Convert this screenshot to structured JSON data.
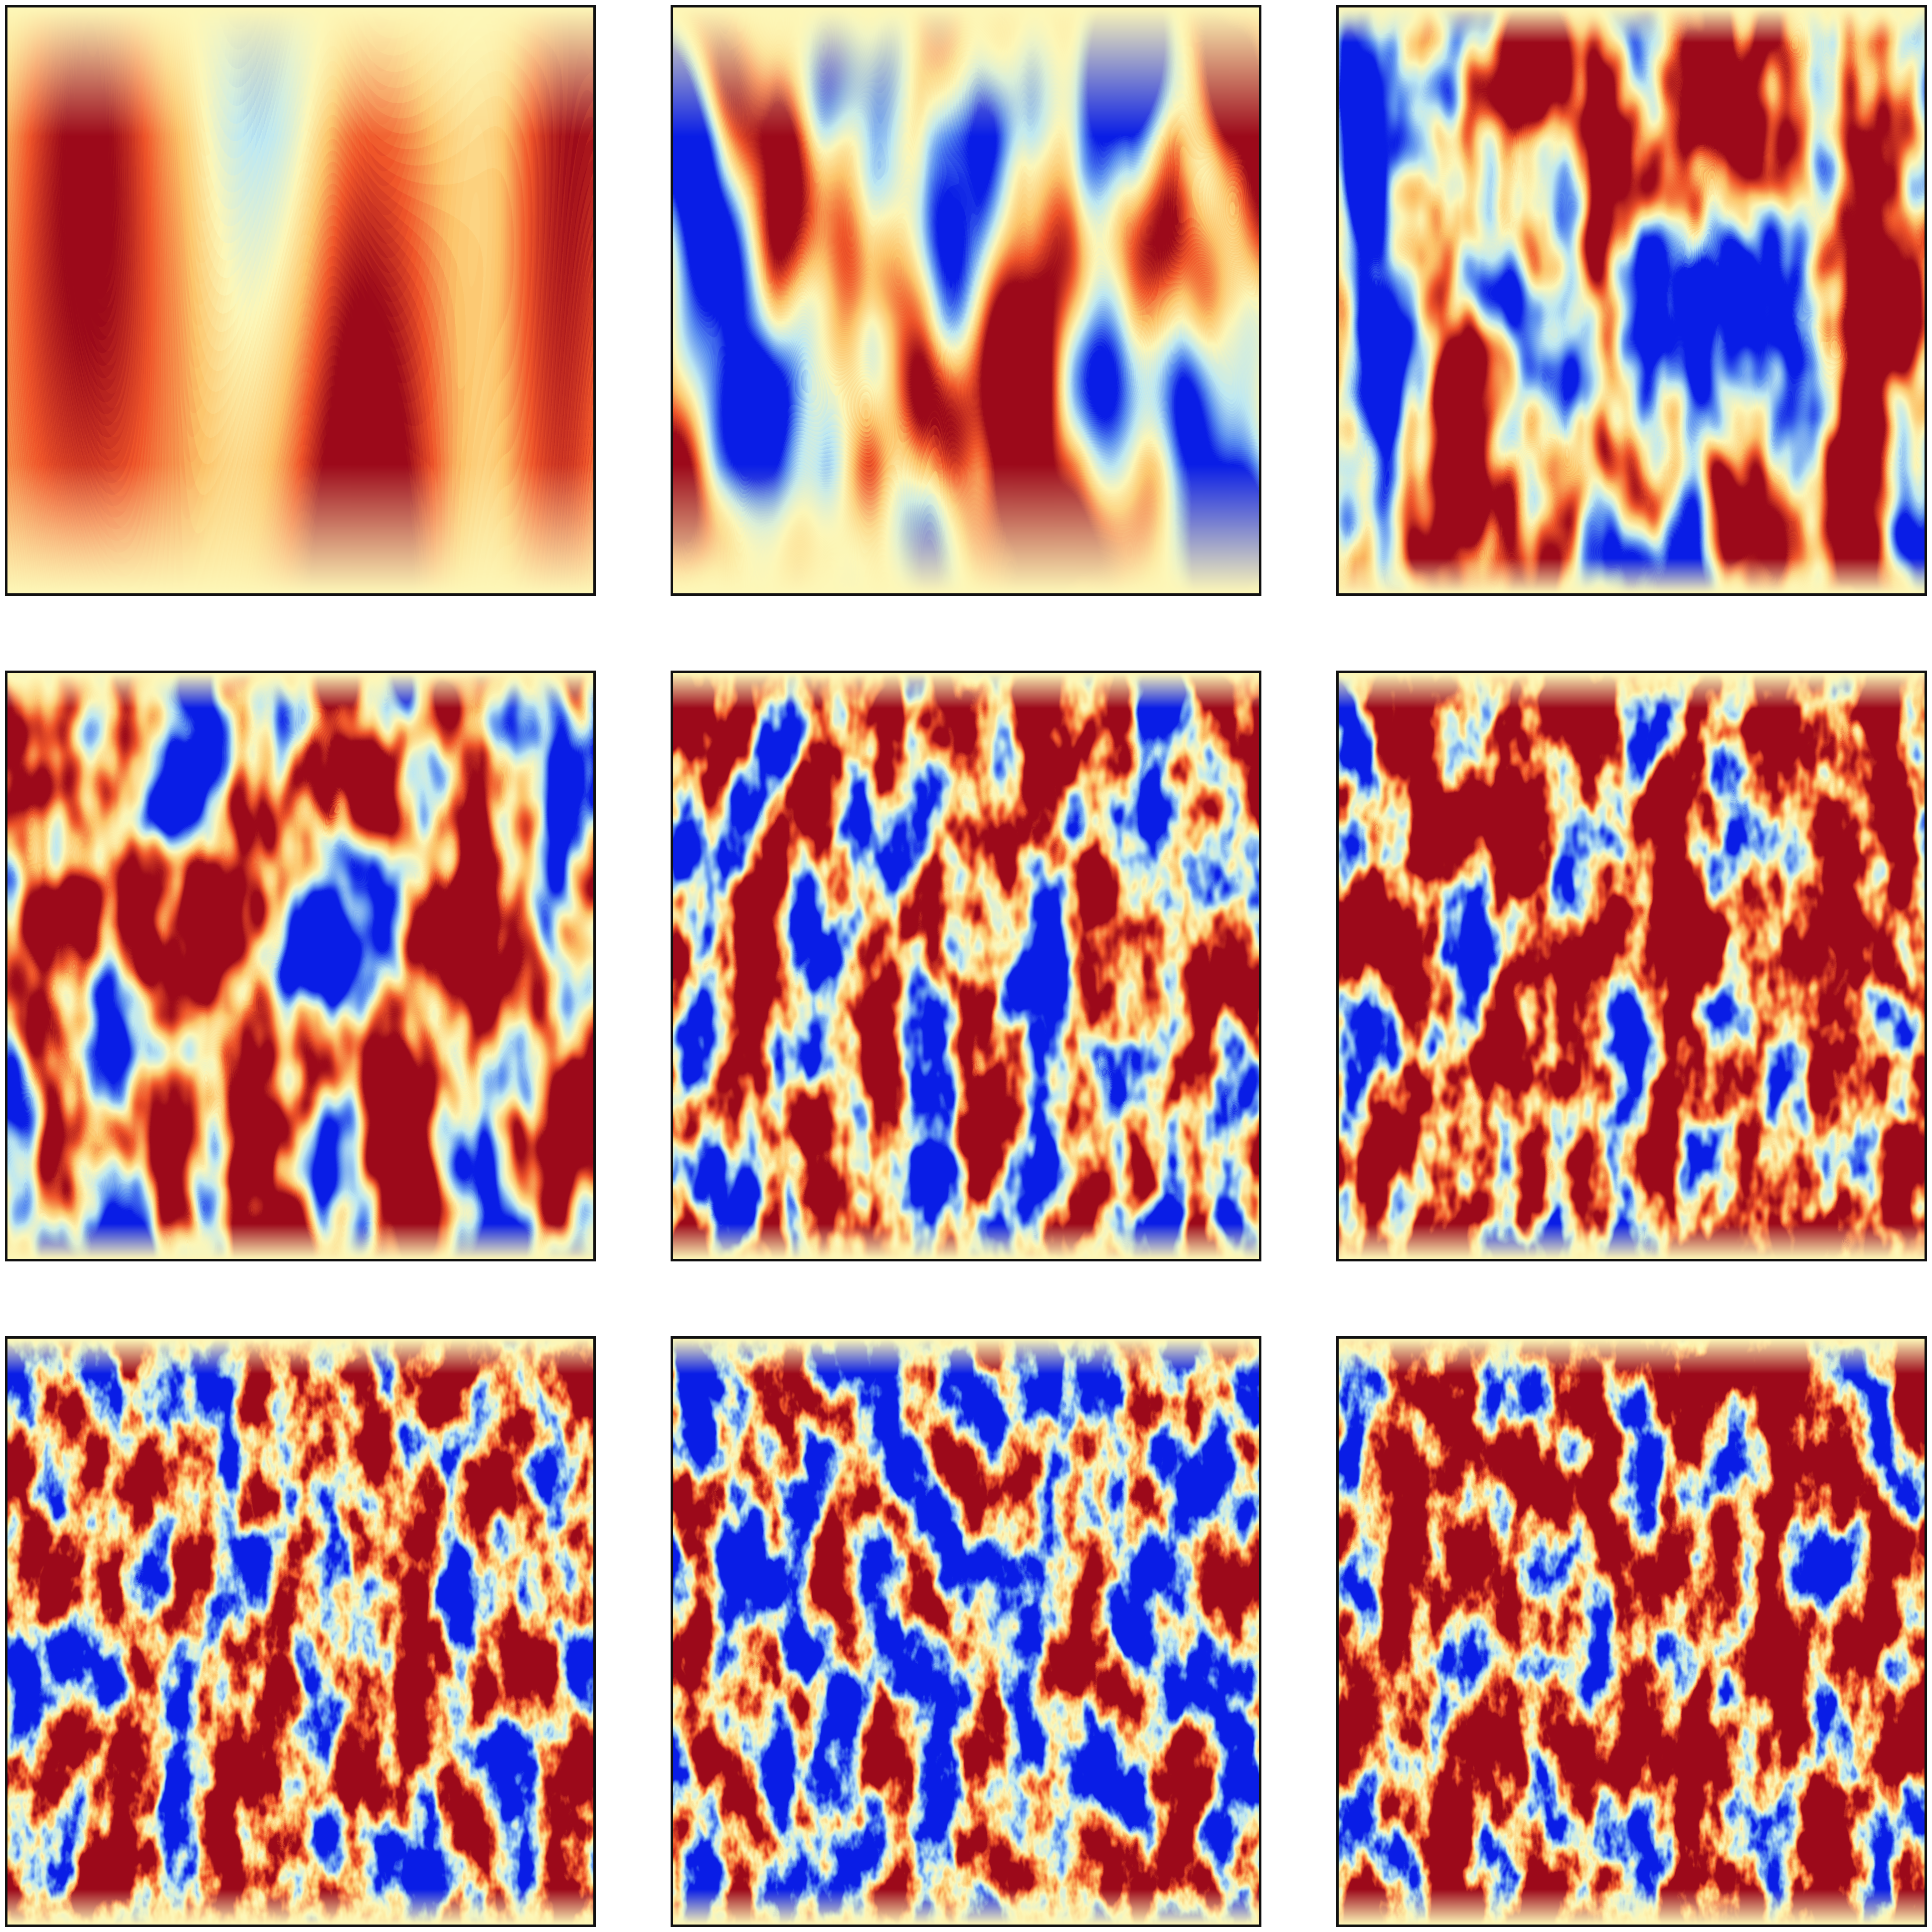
{
  "figure": {
    "rows": 3,
    "cols": 3,
    "colormap": {
      "name": "diverging-blue-yellow-red",
      "stops": [
        "#0a1ee6",
        "#5a8ef0",
        "#bfe9f2",
        "#fdf7b8",
        "#fcc46a",
        "#f0562a",
        "#9c0a1a"
      ]
    },
    "background_color": "#fdf7b8",
    "frame_color": "#111111"
  },
  "panels": [
    {
      "id": "r1c1",
      "pattern": "laminar-vertical-stripes",
      "turbulence_level": 0.0,
      "mean_bias": 0.1
    },
    {
      "id": "r1c2",
      "pattern": "wavy-vertical-streaks",
      "turbulence_level": 0.25,
      "mean_bias": 0.05
    },
    {
      "id": "r1c3",
      "pattern": "fine-vertical-streaks",
      "turbulence_level": 0.4,
      "mean_bias": 0.05
    },
    {
      "id": "r2c1",
      "pattern": "streaks-with-plumes",
      "turbulence_level": 0.5,
      "mean_bias": 0.15
    },
    {
      "id": "r2c2",
      "pattern": "turbulent-plumes",
      "turbulence_level": 0.75,
      "mean_bias": 0.1
    },
    {
      "id": "r2c3",
      "pattern": "turbulent-plumes",
      "turbulence_level": 0.85,
      "mean_bias": 0.3
    },
    {
      "id": "r3c1",
      "pattern": "fully-turbulent",
      "turbulence_level": 0.95,
      "mean_bias": 0.15
    },
    {
      "id": "r3c2",
      "pattern": "fully-turbulent",
      "turbulence_level": 0.95,
      "mean_bias": -0.05
    },
    {
      "id": "r3c3",
      "pattern": "fully-turbulent",
      "turbulence_level": 1.0,
      "mean_bias": 0.3
    }
  ]
}
